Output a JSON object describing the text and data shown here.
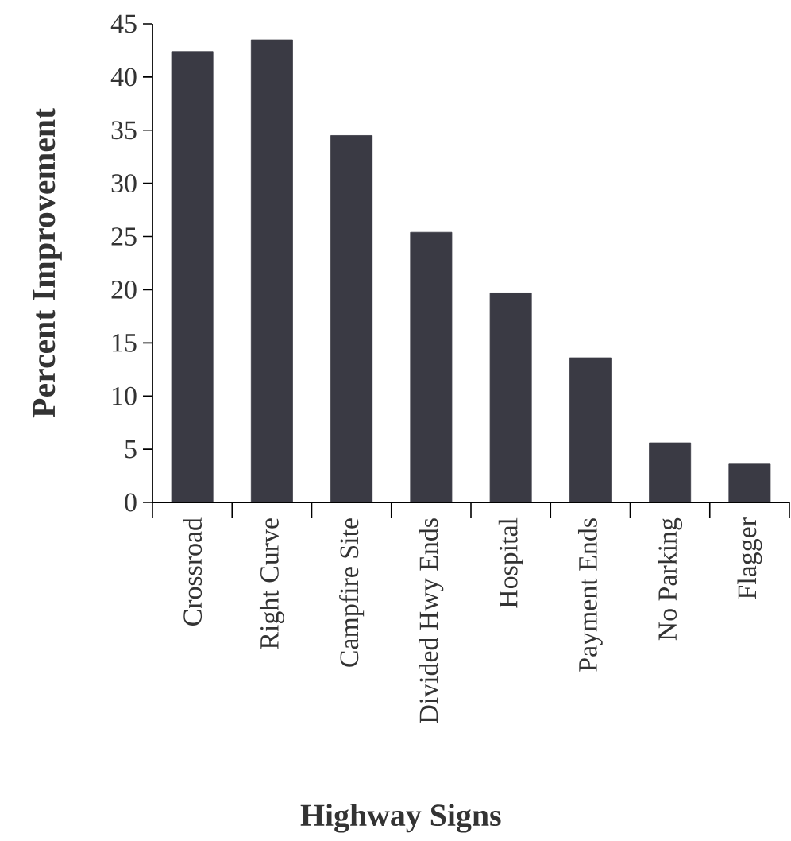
{
  "chart_data": {
    "type": "bar",
    "xlabel": "Highway Signs",
    "ylabel": "Percent Improvement",
    "categories": [
      "Crossroad",
      "Right Curve",
      "Campfire Site",
      "Divided Hwy Ends",
      "Hospital",
      "Payment Ends",
      "No Parking",
      "Flagger"
    ],
    "values": [
      42.4,
      43.5,
      34.5,
      25.4,
      19.7,
      13.6,
      5.6,
      3.6
    ],
    "color": "#3a3a44",
    "ylim": [
      0,
      45
    ],
    "yticks": [
      0,
      5,
      10,
      15,
      20,
      25,
      30,
      35,
      40,
      45
    ]
  }
}
